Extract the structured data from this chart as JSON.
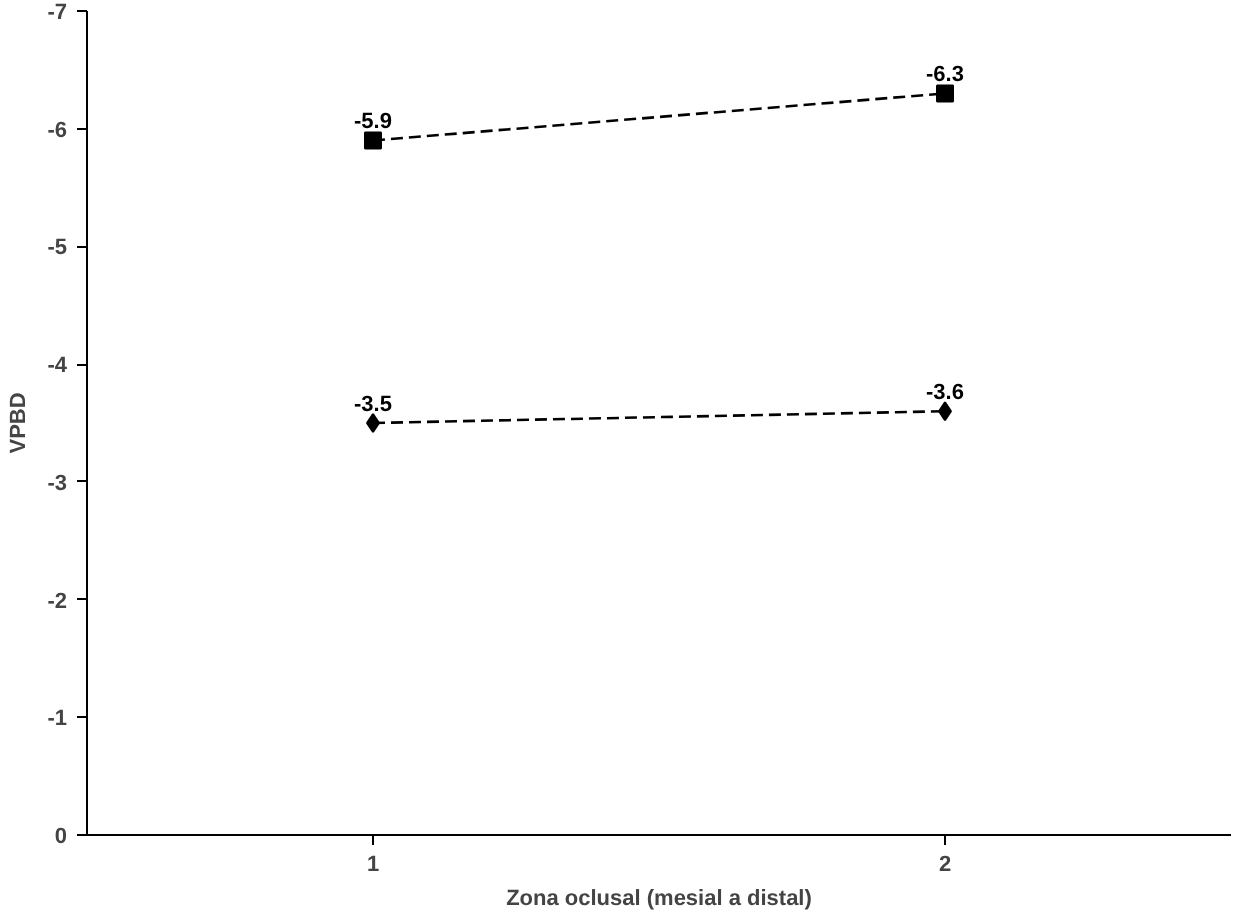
{
  "chart_data": {
    "type": "line",
    "xlabel": "Zona oclusal (mesial a distal)",
    "ylabel": "VPBD",
    "categories": [
      "1",
      "2"
    ],
    "series": [
      {
        "color": "#000000",
        "marker": "square",
        "values": [
          -5.9,
          -6.3
        ]
      },
      {
        "color": "#000000",
        "marker": "diamond",
        "values": [
          -3.5,
          -3.6
        ]
      }
    ],
    "ylim": [
      0,
      -7
    ],
    "yticks": [
      0,
      -1,
      -2,
      -3,
      -4,
      -5,
      -6,
      -7
    ],
    "grid": false,
    "line_style": "dashed",
    "data_labels": true
  }
}
